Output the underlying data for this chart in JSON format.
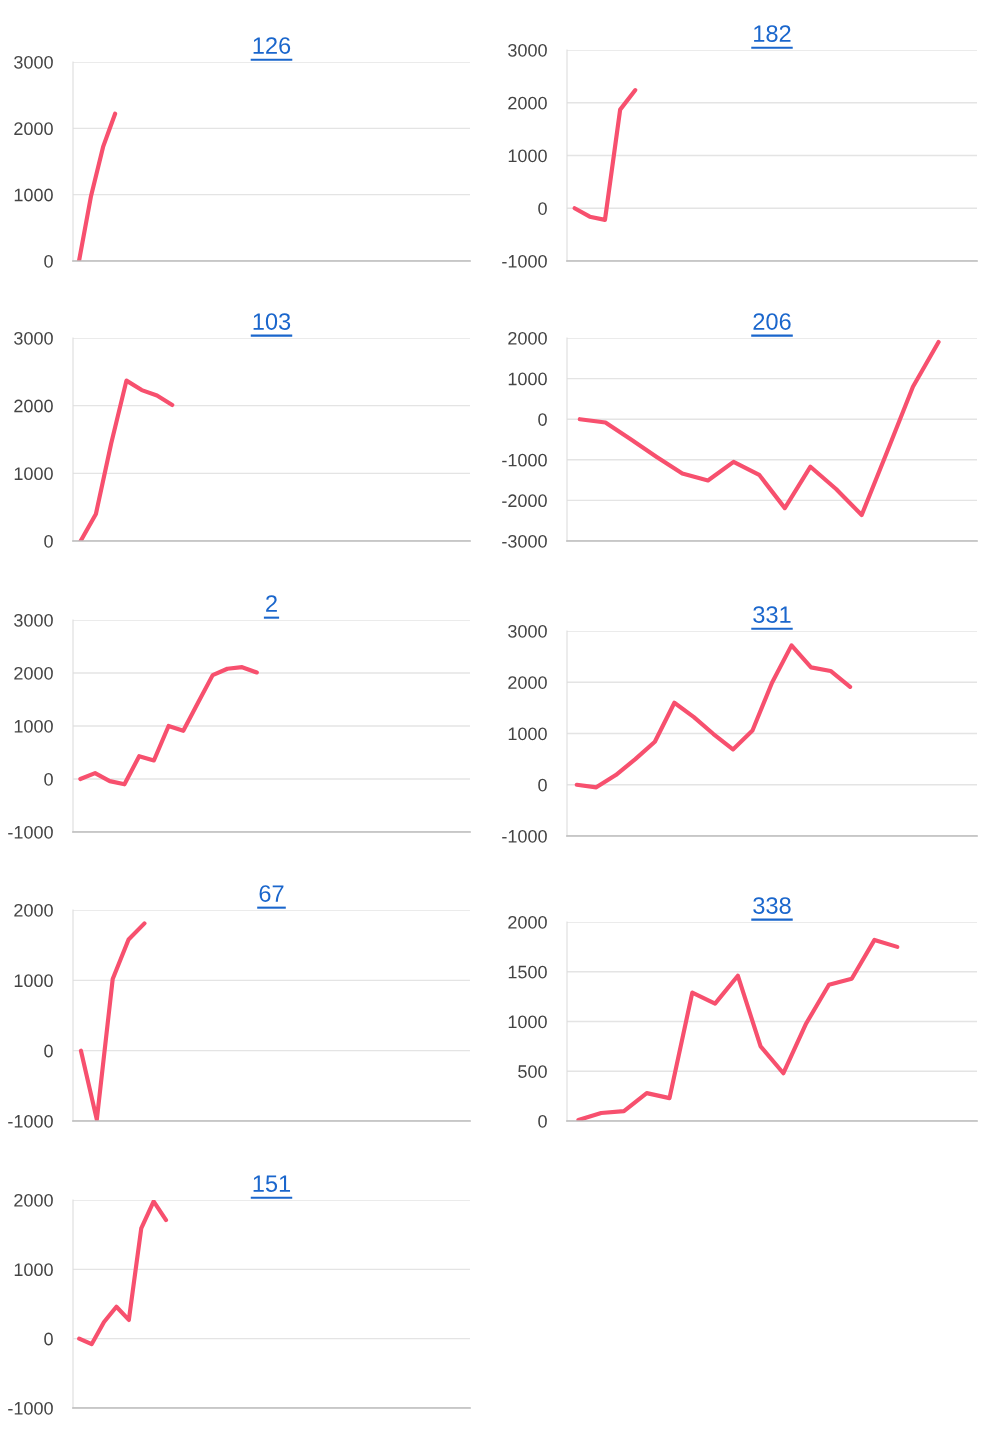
{
  "chart_data": [
    {
      "type": "line",
      "title": "126",
      "color": "#f7506e",
      "grid": "y",
      "tick_labels": "y",
      "ylim": [
        0,
        3000
      ],
      "yticks": [
        0,
        1000,
        2000,
        3000
      ],
      "categories": [
        null,
        null,
        null,
        null,
        null,
        null,
        null,
        null,
        null,
        null,
        null,
        null,
        null,
        null,
        null,
        null,
        null,
        null,
        null,
        null,
        null,
        null,
        null,
        null,
        null,
        null,
        null,
        null,
        null,
        null,
        null,
        null,
        null
      ],
      "values": [
        0,
        980,
        1720,
        2220,
        null,
        null,
        null,
        null,
        null,
        null,
        null,
        null,
        null,
        null,
        null,
        null,
        null,
        null,
        null,
        null,
        null,
        null,
        null,
        null,
        null,
        null,
        null,
        null,
        null,
        null,
        null,
        null,
        null
      ]
    },
    {
      "type": "line",
      "title": "182",
      "color": "#f7506e",
      "grid": "y",
      "tick_labels": "y",
      "ylim": [
        -1000,
        3000
      ],
      "yticks": [
        -1000,
        0,
        1000,
        2000,
        3000
      ],
      "categories": [
        null,
        null,
        null,
        null,
        null,
        null,
        null,
        null,
        null,
        null,
        null,
        null,
        null,
        null,
        null,
        null,
        null,
        null,
        null,
        null,
        null,
        null,
        null,
        null,
        null,
        null,
        null
      ],
      "values": [
        0,
        -160,
        -220,
        1870,
        2240,
        null,
        null,
        null,
        null,
        null,
        null,
        null,
        null,
        null,
        null,
        null,
        null,
        null,
        null,
        null,
        null,
        null,
        null,
        null,
        null,
        null,
        null
      ]
    },
    {
      "type": "line",
      "title": "103",
      "color": "#f7506e",
      "grid": "y",
      "tick_labels": "y",
      "ylim": [
        0,
        3000
      ],
      "yticks": [
        0,
        1000,
        2000,
        3000
      ],
      "categories": [
        null,
        null,
        null,
        null,
        null,
        null,
        null,
        null,
        null,
        null,
        null,
        null,
        null,
        null,
        null,
        null,
        null,
        null,
        null,
        null,
        null,
        null,
        null,
        null,
        null,
        null
      ],
      "values": [
        0,
        400,
        1440,
        2370,
        2230,
        2150,
        2010,
        null,
        null,
        null,
        null,
        null,
        null,
        null,
        null,
        null,
        null,
        null,
        null,
        null,
        null,
        null,
        null,
        null,
        null,
        null
      ]
    },
    {
      "type": "line",
      "title": "206",
      "color": "#f7506e",
      "grid": "y",
      "tick_labels": "y",
      "ylim": [
        -3000,
        2000
      ],
      "yticks": [
        -3000,
        -2000,
        -1000,
        0,
        1000,
        2000
      ],
      "categories": [
        null,
        null,
        null,
        null,
        null,
        null,
        null,
        null,
        null,
        null,
        null,
        null,
        null,
        null,
        null,
        null
      ],
      "values": [
        0,
        -80,
        -500,
        -930,
        -1340,
        -1510,
        -1050,
        -1370,
        -2190,
        -1170,
        -1720,
        -2360,
        -790,
        800,
        1900,
        null
      ]
    },
    {
      "type": "line",
      "title": "2",
      "color": "#f7506e",
      "grid": "y",
      "tick_labels": "y",
      "ylim": [
        -1000,
        3000
      ],
      "yticks": [
        -1000,
        0,
        1000,
        2000,
        3000
      ],
      "categories": [
        null,
        null,
        null,
        null,
        null,
        null,
        null,
        null,
        null,
        null,
        null,
        null,
        null,
        null,
        null,
        null,
        null,
        null,
        null,
        null,
        null,
        null,
        null,
        null,
        null,
        null,
        null
      ],
      "values": [
        0,
        110,
        -40,
        -100,
        430,
        350,
        1000,
        910,
        1440,
        1960,
        2080,
        2110,
        2010,
        null,
        null,
        null,
        null,
        null,
        null,
        null,
        null,
        null,
        null,
        null,
        null,
        null,
        null
      ]
    },
    {
      "type": "line",
      "title": "331",
      "color": "#f7506e",
      "grid": "y",
      "tick_labels": "y",
      "ylim": [
        -1000,
        3000
      ],
      "yticks": [
        -1000,
        0,
        1000,
        2000,
        3000
      ],
      "categories": [
        null,
        null,
        null,
        null,
        null,
        null,
        null,
        null,
        null,
        null,
        null,
        null,
        null,
        null,
        null,
        null,
        null,
        null,
        null,
        null,
        null
      ],
      "values": [
        0,
        -50,
        190,
        500,
        840,
        1600,
        1320,
        990,
        690,
        1060,
        1990,
        2720,
        2290,
        2220,
        1910,
        null,
        null,
        null,
        null,
        null,
        null
      ]
    },
    {
      "type": "line",
      "title": "67",
      "color": "#f7506e",
      "grid": "y",
      "tick_labels": "y",
      "ylim": [
        -1000,
        2000
      ],
      "yticks": [
        -1000,
        0,
        1000,
        2000
      ],
      "categories": [
        null,
        null,
        null,
        null,
        null,
        null,
        null,
        null,
        null,
        null,
        null,
        null,
        null,
        null,
        null,
        null,
        null,
        null,
        null,
        null,
        null,
        null,
        null,
        null,
        null
      ],
      "values": [
        0,
        -980,
        1020,
        1580,
        1810,
        null,
        null,
        null,
        null,
        null,
        null,
        null,
        null,
        null,
        null,
        null,
        null,
        null,
        null,
        null,
        null,
        null,
        null,
        null,
        null
      ]
    },
    {
      "type": "line",
      "title": "338",
      "color": "#f7506e",
      "grid": "y",
      "tick_labels": "y",
      "ylim": [
        0,
        2000
      ],
      "yticks": [
        0,
        500,
        1000,
        1500,
        2000
      ],
      "categories": [
        null,
        null,
        null,
        null,
        null,
        null,
        null,
        null,
        null,
        null,
        null,
        null,
        null,
        null,
        null,
        null,
        null,
        null
      ],
      "values": [
        10,
        80,
        100,
        280,
        230,
        1290,
        1180,
        1460,
        750,
        480,
        980,
        1370,
        1430,
        1820,
        1750,
        null,
        null,
        null
      ]
    },
    {
      "type": "line",
      "title": "151",
      "color": "#f7506e",
      "grid": "y",
      "tick_labels": "y",
      "ylim": [
        -1000,
        2000
      ],
      "yticks": [
        -1000,
        0,
        1000,
        2000
      ],
      "categories": [
        null,
        null,
        null,
        null,
        null,
        null,
        null,
        null,
        null,
        null,
        null,
        null,
        null,
        null,
        null,
        null,
        null,
        null,
        null,
        null,
        null,
        null,
        null,
        null,
        null,
        null,
        null,
        null,
        null,
        null,
        null,
        null
      ],
      "values": [
        0,
        -80,
        240,
        460,
        270,
        1590,
        1980,
        1710,
        null,
        null,
        null,
        null,
        null,
        null,
        null,
        null,
        null,
        null,
        null,
        null,
        null,
        null,
        null,
        null,
        null,
        null,
        null,
        null,
        null,
        null,
        null,
        null
      ]
    }
  ]
}
